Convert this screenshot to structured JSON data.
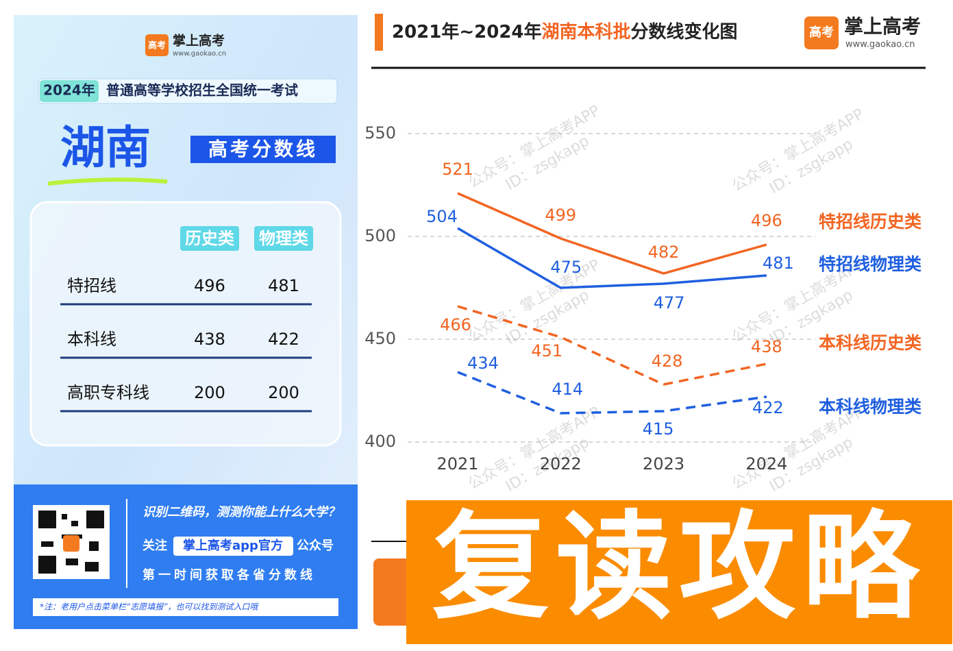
{
  "poster": {
    "logo_icon": "高考",
    "logo_name": "掌上高考",
    "logo_url": "www.gaokao.cn",
    "year_badge": "2024年",
    "exam": "普通高等学校招生全国统一考试",
    "province": "湖南",
    "subtitle": "高考分数线",
    "table": {
      "header": [
        "历史类",
        "物理类"
      ],
      "rows": [
        [
          "特招线",
          496,
          481
        ],
        [
          "本科线",
          438,
          422
        ],
        [
          "高职专科线",
          200,
          200
        ]
      ]
    },
    "qr_prompt": "识别二维码，测测你能上什么大学？",
    "follow_prefix": "关注",
    "follow_name": "掌上高考app官方",
    "follow_suffix": "公众号",
    "first_time": "第一时间获取各省分数线",
    "note": "*注：老用户点击菜单栏“志愿填报”，也可以找到测试入口哦"
  },
  "chart_data": {
    "type": "line",
    "title_years": "2021年~2024年",
    "title_highlight": "湖南本科批",
    "title_rest": "分数线变化图",
    "logo_icon": "高考",
    "logo_name": "掌上高考",
    "logo_url": "www.gaokao.cn",
    "watermark_1": "公众号：掌上高考APP",
    "watermark_2": "ID：zsgkapp",
    "categories": [
      "2021",
      "2022",
      "2023",
      "2024"
    ],
    "ylim": [
      400,
      550
    ],
    "yticks": [
      400,
      450,
      500,
      550
    ],
    "grid": true,
    "series": [
      {
        "name": "特招线历史类",
        "color": "#f26522",
        "dashed": false,
        "values": [
          521,
          499,
          482,
          496
        ]
      },
      {
        "name": "特招线物理类",
        "color": "#1f5fe0",
        "dashed": false,
        "values": [
          504,
          475,
          477,
          481
        ]
      },
      {
        "name": "本科线历史类",
        "color": "#f26522",
        "dashed": true,
        "values": [
          466,
          451,
          428,
          438
        ]
      },
      {
        "name": "本科线物理类",
        "color": "#1f5fe0",
        "dashed": true,
        "values": [
          434,
          414,
          415,
          422
        ]
      }
    ]
  },
  "banner": {
    "text": "复读攻略"
  }
}
